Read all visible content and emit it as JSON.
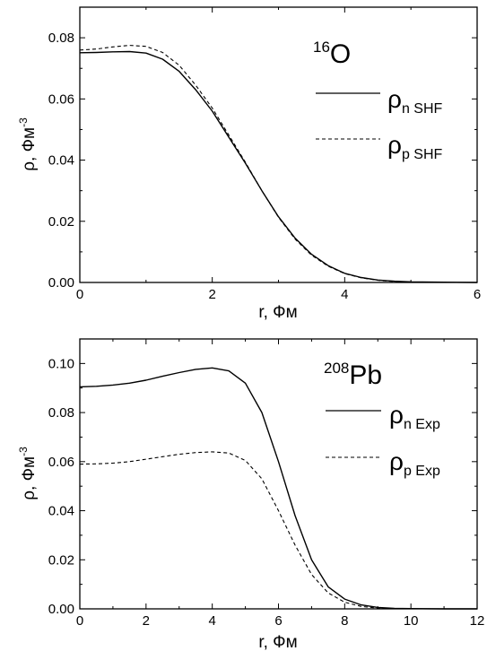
{
  "chart_data": [
    {
      "type": "line",
      "nucleus": {
        "mass": "16",
        "symbol": "O"
      },
      "xlabel": "r, Фм",
      "ylabel": {
        "base": "ρ, Фм",
        "sup": "-3"
      },
      "xlim": [
        0,
        6
      ],
      "ylim": [
        0,
        0.09
      ],
      "xticks": [
        0,
        2,
        4,
        6
      ],
      "xtick_labels": [
        "0",
        "2",
        "4",
        "6"
      ],
      "yticks": [
        0,
        0.02,
        0.04,
        0.06,
        0.08
      ],
      "ytick_labels": [
        "0.00",
        "0.02",
        "0.04",
        "0.06",
        "0.08"
      ],
      "legend_position": "right",
      "series": [
        {
          "name": {
            "sym": "ρ",
            "sub": "n SHF"
          },
          "dash": "solid",
          "x": [
            0,
            0.25,
            0.5,
            0.75,
            1.0,
            1.25,
            1.5,
            1.75,
            2.0,
            2.25,
            2.5,
            2.75,
            3.0,
            3.25,
            3.5,
            3.75,
            4.0,
            4.25,
            4.5,
            4.75,
            5.0,
            5.5,
            6.0
          ],
          "y": [
            0.0751,
            0.0752,
            0.0754,
            0.0755,
            0.075,
            0.073,
            0.069,
            0.063,
            0.056,
            0.0475,
            0.039,
            0.03,
            0.0215,
            0.0145,
            0.0092,
            0.0055,
            0.003,
            0.0016,
            0.0008,
            0.0004,
            0.0002,
            0.0001,
            0.0
          ]
        },
        {
          "name": {
            "sym": "ρ",
            "sub": "p SHF"
          },
          "dash": "dashed",
          "x": [
            0,
            0.25,
            0.5,
            0.75,
            1.0,
            1.25,
            1.5,
            1.75,
            2.0,
            2.25,
            2.5,
            2.75,
            3.0,
            3.25,
            3.5,
            3.75,
            4.0,
            4.25,
            4.5,
            4.75,
            5.0,
            5.5,
            6.0
          ],
          "y": [
            0.076,
            0.0763,
            0.077,
            0.0775,
            0.0772,
            0.0752,
            0.071,
            0.0645,
            0.057,
            0.0482,
            0.0393,
            0.03,
            0.0213,
            0.0142,
            0.0089,
            0.0053,
            0.0029,
            0.0015,
            0.0007,
            0.0003,
            0.0001,
            0.0,
            0.0
          ]
        }
      ]
    },
    {
      "type": "line",
      "nucleus": {
        "mass": "208",
        "symbol": "Pb"
      },
      "xlabel": "r, Фм",
      "ylabel": {
        "base": "ρ, Фм",
        "sup": "-3"
      },
      "xlim": [
        0,
        12
      ],
      "ylim": [
        0,
        0.11
      ],
      "xticks": [
        0,
        2,
        4,
        6,
        8,
        10,
        12
      ],
      "xtick_labels": [
        "0",
        "2",
        "4",
        "6",
        "8",
        "10",
        "12"
      ],
      "yticks": [
        0,
        0.02,
        0.04,
        0.06,
        0.08,
        0.1
      ],
      "ytick_labels": [
        "0.00",
        "0.02",
        "0.04",
        "0.06",
        "0.08",
        "0.10"
      ],
      "legend_position": "right",
      "series": [
        {
          "name": {
            "sym": "ρ",
            "sub": "n Exp"
          },
          "dash": "solid",
          "x": [
            0,
            0.5,
            1.0,
            1.5,
            2.0,
            2.5,
            3.0,
            3.5,
            4.0,
            4.5,
            5.0,
            5.5,
            6.0,
            6.5,
            7.0,
            7.5,
            8.0,
            8.5,
            9.0,
            9.5,
            10.0,
            11.0,
            12.0
          ],
          "y": [
            0.0905,
            0.0907,
            0.0912,
            0.092,
            0.0932,
            0.0948,
            0.0963,
            0.0976,
            0.0982,
            0.097,
            0.092,
            0.08,
            0.06,
            0.038,
            0.02,
            0.009,
            0.004,
            0.0016,
            0.0006,
            0.0002,
            0.0001,
            0.0,
            0.0
          ]
        },
        {
          "name": {
            "sym": "ρ",
            "sub": "p Exp"
          },
          "dash": "dashed",
          "x": [
            0,
            0.5,
            1.0,
            1.5,
            2.0,
            2.5,
            3.0,
            3.5,
            4.0,
            4.5,
            5.0,
            5.5,
            6.0,
            6.5,
            7.0,
            7.5,
            8.0,
            8.5,
            9.0,
            9.5,
            10.0,
            11.0,
            12.0
          ],
          "y": [
            0.059,
            0.0591,
            0.0594,
            0.06,
            0.061,
            0.062,
            0.063,
            0.0637,
            0.064,
            0.0635,
            0.0605,
            0.053,
            0.04,
            0.026,
            0.014,
            0.0065,
            0.0027,
            0.001,
            0.0003,
            0.0001,
            0.0,
            0.0,
            0.0
          ]
        }
      ]
    }
  ]
}
